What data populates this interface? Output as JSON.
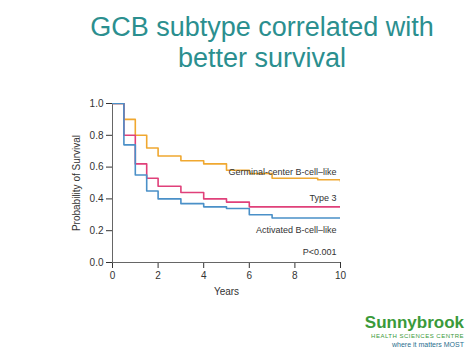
{
  "chart_data": {
    "type": "line",
    "title": "GCB subtype correlated with better survival",
    "x_label": "Years",
    "y_label": "Probability of Survival",
    "x": [
      0,
      0.5,
      1,
      1.5,
      2,
      3,
      4,
      5,
      6,
      7,
      8,
      9,
      10
    ],
    "series": [
      {
        "name": "Germinal-center B-cell–like",
        "color": "#f0a830",
        "values": [
          1.0,
          0.9,
          0.8,
          0.72,
          0.67,
          0.64,
          0.62,
          0.58,
          0.56,
          0.53,
          0.53,
          0.52,
          0.51
        ]
      },
      {
        "name": "Type 3",
        "color": "#e0407a",
        "values": [
          1.0,
          0.8,
          0.62,
          0.53,
          0.48,
          0.44,
          0.4,
          0.38,
          0.35,
          0.35,
          0.35,
          0.35,
          0.35
        ]
      },
      {
        "name": "Activated B-cell–like",
        "color": "#4a90c8",
        "values": [
          1.0,
          0.74,
          0.55,
          0.45,
          0.4,
          0.37,
          0.35,
          0.34,
          0.3,
          0.28,
          0.28,
          0.28,
          0.28
        ]
      }
    ],
    "line_style": "step",
    "xlim": [
      0,
      10
    ],
    "xticks": [
      0,
      2,
      4,
      6,
      8,
      10
    ],
    "ylim": [
      0,
      1
    ],
    "yticks": [
      {
        "value": 0,
        "label": "0.0"
      },
      {
        "value": 0.2,
        "label": "0.2"
      },
      {
        "value": 0.4,
        "label": "0.4"
      },
      {
        "value": 0.6,
        "label": "0.6"
      },
      {
        "value": 0.8,
        "label": "0.8"
      },
      {
        "value": 1,
        "label": "1.0"
      }
    ],
    "grid": false,
    "annotations": [
      "P<0.001"
    ]
  },
  "logo": {
    "name": "Sunnybrook",
    "subtitle": "HEALTH SCIENCES CENTRE",
    "tagline": "where it matters MOST"
  }
}
